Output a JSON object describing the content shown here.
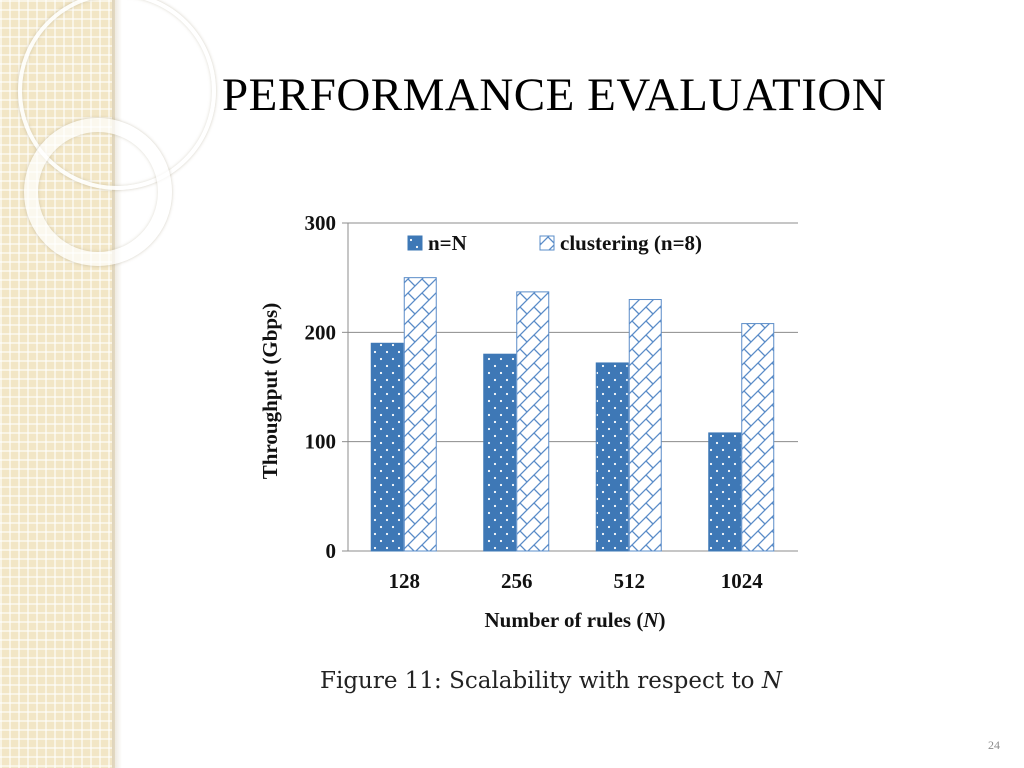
{
  "slide": {
    "title": "PERFORMANCE EVALUATION",
    "caption_prefix": "Figure 11:  Scalability with respect to ",
    "caption_var": "N",
    "page_number": "24"
  },
  "colors": {
    "series1": "#3e78b6",
    "series2_line": "#5a8cc8",
    "grid": "#8c8c8c",
    "band": "#f2e6c6"
  },
  "chart_data": {
    "type": "bar",
    "categories": [
      "128",
      "256",
      "512",
      "1024"
    ],
    "series": [
      {
        "name": "n=N",
        "values": [
          190,
          180,
          172,
          108
        ]
      },
      {
        "name": "clustering (n=8)",
        "values": [
          250,
          237,
          230,
          208
        ]
      }
    ],
    "xlabel_prefix": "Number of rules (",
    "xlabel_var": "N",
    "xlabel_suffix": ")",
    "ylabel": "Throughput (Gbps)",
    "ylim": [
      0,
      300
    ],
    "yticks": [
      "0",
      "100",
      "200",
      "300"
    ],
    "grid": true,
    "legend_position": "top"
  }
}
